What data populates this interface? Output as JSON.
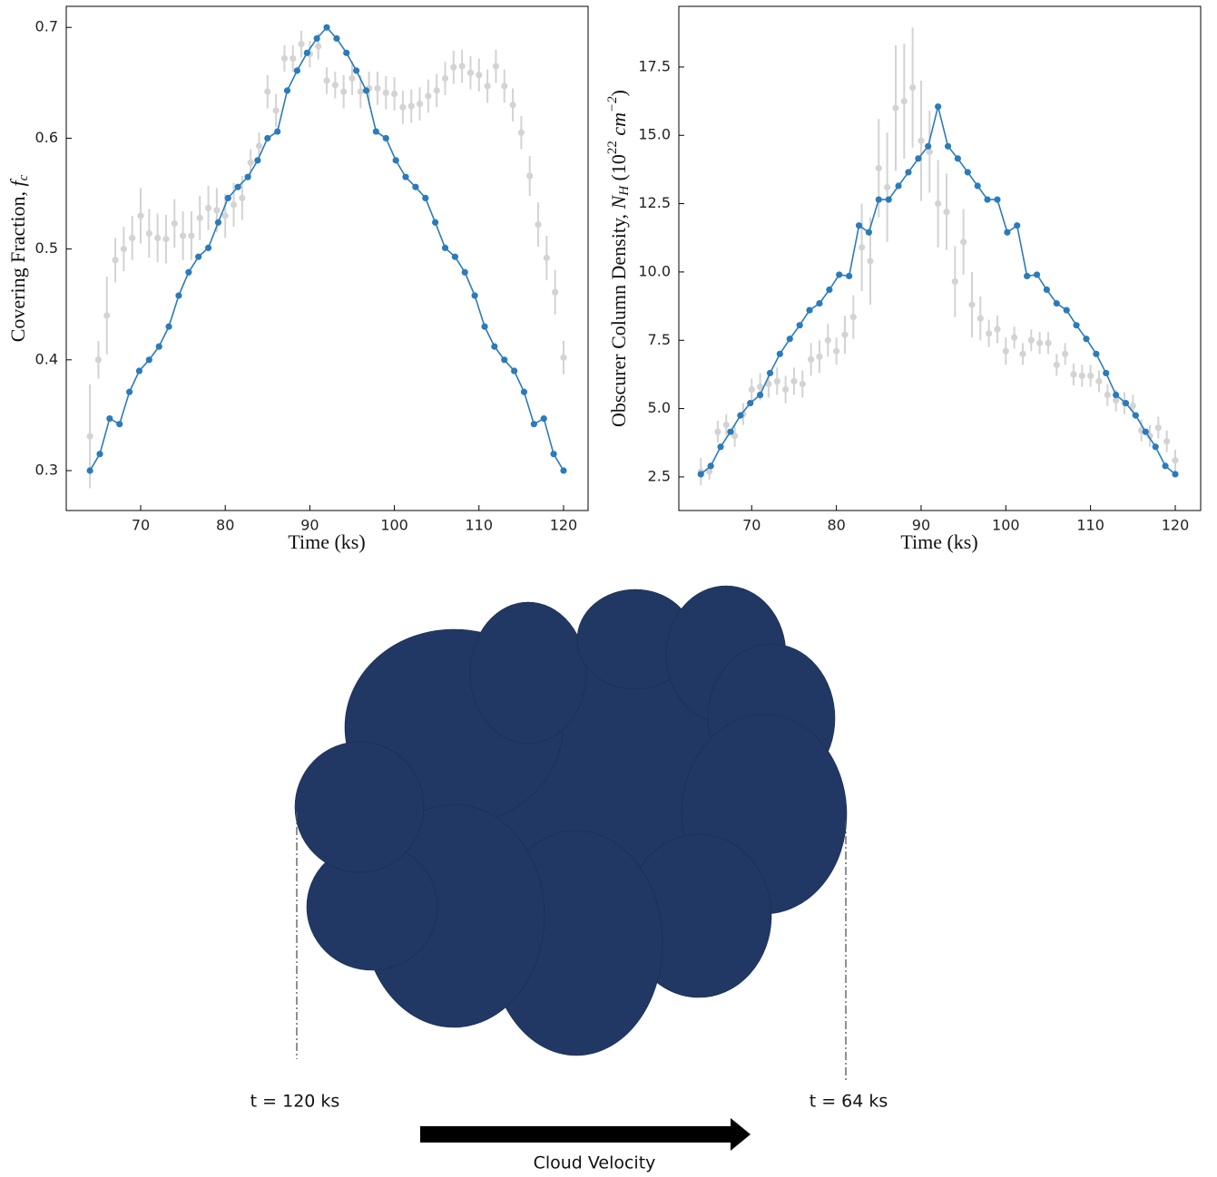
{
  "chart_data": [
    {
      "type": "line",
      "xlabel": "Time (ks)",
      "ylabel": [
        "Covering Fraction, ",
        "f",
        "c"
      ],
      "xlim": [
        61.2,
        122.9
      ],
      "ylim": [
        0.264,
        0.719
      ],
      "xticks": [
        70,
        80,
        90,
        100,
        110,
        120
      ],
      "yticks": [
        0.3,
        0.4,
        0.5,
        0.6,
        0.7
      ],
      "series": [
        {
          "type": "errorbar",
          "color": "#d3d3d3",
          "x": [
            64,
            65,
            66,
            67,
            68,
            69,
            70,
            71,
            72,
            73,
            74,
            75,
            76,
            77,
            78,
            79,
            80,
            81,
            82,
            83,
            84,
            85,
            86,
            87,
            88,
            89,
            90,
            91,
            92,
            93,
            94,
            95,
            96,
            97,
            98,
            99,
            100,
            101,
            102,
            103,
            104,
            105,
            106,
            107,
            108,
            109,
            110,
            111,
            112,
            113,
            114,
            115,
            116,
            117,
            118,
            119,
            120
          ],
          "values": [
            0.331,
            0.4,
            0.44,
            0.49,
            0.5,
            0.51,
            0.53,
            0.514,
            0.51,
            0.509,
            0.523,
            0.512,
            0.512,
            0.528,
            0.537,
            0.535,
            0.53,
            0.54,
            0.546,
            0.578,
            0.593,
            0.642,
            0.625,
            0.672,
            0.672,
            0.685,
            0.676,
            0.683,
            0.652,
            0.648,
            0.642,
            0.654,
            0.642,
            0.645,
            0.645,
            0.641,
            0.64,
            0.628,
            0.629,
            0.631,
            0.638,
            0.643,
            0.654,
            0.664,
            0.665,
            0.659,
            0.657,
            0.647,
            0.665,
            0.647,
            0.63,
            0.605,
            0.566,
            0.522,
            0.492,
            0.461,
            0.402
          ],
          "errors": [
            0.047,
            0.017,
            0.035,
            0.02,
            0.02,
            0.02,
            0.025,
            0.022,
            0.022,
            0.022,
            0.022,
            0.022,
            0.022,
            0.02,
            0.02,
            0.02,
            0.02,
            0.02,
            0.02,
            0.012,
            0.012,
            0.015,
            0.015,
            0.012,
            0.012,
            0.012,
            0.012,
            0.012,
            0.012,
            0.012,
            0.015,
            0.015,
            0.015,
            0.015,
            0.015,
            0.015,
            0.015,
            0.015,
            0.015,
            0.015,
            0.015,
            0.015,
            0.015,
            0.015,
            0.015,
            0.015,
            0.015,
            0.015,
            0.015,
            0.015,
            0.015,
            0.015,
            0.018,
            0.02,
            0.02,
            0.02,
            0.015
          ]
        },
        {
          "type": "line",
          "color": "#2b7bba",
          "x": [
            64,
            65.17,
            66.33,
            67.5,
            68.67,
            69.83,
            71,
            72.17,
            73.33,
            74.5,
            75.67,
            76.83,
            78,
            79.17,
            80.33,
            81.5,
            82.67,
            83.83,
            85,
            86.17,
            87.33,
            88.5,
            89.67,
            90.83,
            92,
            93.17,
            94.33,
            95.5,
            96.67,
            97.83,
            99,
            100.17,
            101.33,
            102.5,
            103.67,
            104.83,
            106,
            107.17,
            108.33,
            109.5,
            110.67,
            111.83,
            113,
            114.17,
            115.33,
            116.5,
            117.67,
            118.83,
            120
          ],
          "values": [
            0.3,
            0.315,
            0.347,
            0.342,
            0.371,
            0.39,
            0.4,
            0.412,
            0.43,
            0.458,
            0.479,
            0.493,
            0.501,
            0.524,
            0.546,
            0.556,
            0.565,
            0.58,
            0.6,
            0.606,
            0.643,
            0.661,
            0.677,
            0.69,
            0.7,
            0.69,
            0.677,
            0.661,
            0.643,
            0.606,
            0.6,
            0.58,
            0.565,
            0.556,
            0.546,
            0.524,
            0.501,
            0.493,
            0.479,
            0.458,
            0.43,
            0.412,
            0.4,
            0.39,
            0.371,
            0.342,
            0.347,
            0.315,
            0.3
          ]
        }
      ]
    },
    {
      "type": "line",
      "xlabel": "Time (ks)",
      "ylabel": [
        "Obscurer Column Density, ",
        "N",
        "H",
        " (10",
        "22",
        " cm",
        "−2",
        ")"
      ],
      "xlim": [
        61.4,
        123.0
      ],
      "ylim": [
        1.27,
        19.72
      ],
      "xticks": [
        70,
        80,
        90,
        100,
        110,
        120
      ],
      "yticks": [
        2.5,
        {
          "value": 5,
          "label": "5.0"
        },
        7.5,
        {
          "value": 10,
          "label": "10.0"
        },
        12.5,
        {
          "value": 15,
          "label": "15.0"
        },
        17.5
      ],
      "series": [
        {
          "type": "errorbar",
          "color": "#d3d3d3",
          "x": [
            64,
            65,
            66,
            67,
            68,
            69,
            70,
            71,
            72,
            73,
            74,
            75,
            76,
            77,
            78,
            79,
            80,
            81,
            82,
            83,
            84,
            85,
            86,
            87,
            88,
            89,
            90,
            91,
            92,
            93,
            94,
            95,
            96,
            97,
            98,
            99,
            100,
            101,
            102,
            103,
            104,
            105,
            106,
            107,
            108,
            109,
            110,
            111,
            112,
            113,
            114,
            115,
            116,
            117,
            118,
            119,
            120
          ],
          "values": [
            2.7,
            2.7,
            4.15,
            4.4,
            4.0,
            4.8,
            5.7,
            5.8,
            5.9,
            6.0,
            5.7,
            6.0,
            5.9,
            6.8,
            6.9,
            7.5,
            7.1,
            7.7,
            8.35,
            10.9,
            10.4,
            13.8,
            13.1,
            16.0,
            16.25,
            16.75,
            14.8,
            14.4,
            12.5,
            12.2,
            9.65,
            11.1,
            8.8,
            8.3,
            7.75,
            7.9,
            7.1,
            7.6,
            7.0,
            7.5,
            7.4,
            7.4,
            6.6,
            7.0,
            6.25,
            6.2,
            6.2,
            6.0,
            5.5,
            5.3,
            5.2,
            5.1,
            4.2,
            4.0,
            4.3,
            3.8,
            3.1
          ],
          "errors": [
            0.5,
            0.3,
            0.4,
            0.4,
            0.4,
            0.4,
            0.4,
            0.5,
            0.5,
            0.5,
            0.5,
            0.5,
            0.5,
            0.6,
            0.6,
            0.6,
            0.5,
            0.7,
            0.8,
            1.6,
            1.6,
            1.8,
            2.0,
            2.3,
            2.1,
            2.2,
            2.2,
            1.5,
            1.6,
            1.4,
            1.3,
            1.2,
            1.2,
            0.8,
            0.5,
            0.5,
            0.5,
            0.4,
            0.4,
            0.4,
            0.4,
            0.4,
            0.4,
            0.4,
            0.4,
            0.4,
            0.4,
            0.4,
            0.4,
            0.4,
            0.4,
            0.4,
            0.4,
            0.4,
            0.4,
            0.4,
            0.4
          ]
        },
        {
          "type": "line",
          "color": "#2b7bba",
          "x": [
            64,
            65.17,
            66.33,
            67.5,
            68.67,
            69.83,
            71,
            72.17,
            73.33,
            74.5,
            75.67,
            76.83,
            78,
            79.17,
            80.33,
            81.5,
            82.67,
            83.83,
            85,
            86.17,
            87.33,
            88.5,
            89.67,
            90.83,
            92,
            93.17,
            94.33,
            95.5,
            96.67,
            97.83,
            99,
            100.17,
            101.33,
            102.5,
            103.67,
            104.83,
            106,
            107.17,
            108.33,
            109.5,
            110.67,
            111.83,
            113,
            114.17,
            115.33,
            116.5,
            117.67,
            118.83,
            120
          ],
          "values": [
            2.6,
            2.9,
            3.6,
            4.15,
            4.75,
            5.2,
            5.5,
            6.3,
            7.0,
            7.55,
            8.05,
            8.6,
            8.85,
            9.35,
            9.9,
            9.85,
            11.7,
            11.45,
            12.65,
            12.65,
            13.15,
            13.65,
            14.15,
            14.6,
            16.05,
            14.6,
            14.15,
            13.65,
            13.15,
            12.65,
            12.65,
            11.45,
            11.7,
            9.85,
            9.9,
            9.35,
            8.85,
            8.6,
            8.05,
            7.55,
            7.0,
            6.3,
            5.5,
            5.2,
            4.75,
            4.15,
            3.6,
            2.9,
            2.6
          ]
        }
      ]
    }
  ],
  "diagram": {
    "left_label": "t = 120 ks",
    "right_label": "t = 64 ks",
    "arrow_label": "Cloud Velocity"
  }
}
